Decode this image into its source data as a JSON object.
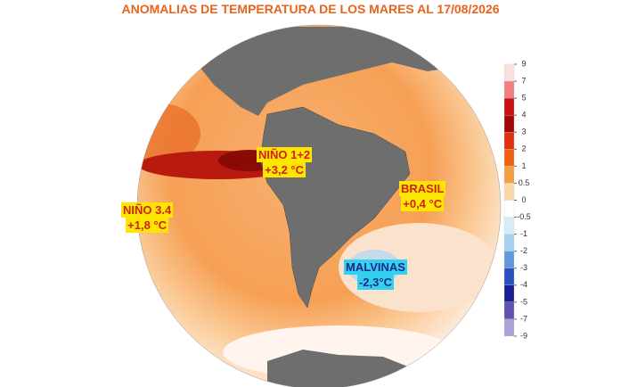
{
  "title": "ANOMALIAS DE TEMPERATURA DE LOS MARES AL 17/08/2026",
  "regions": [
    {
      "name": "NIÑO 1+2",
      "anomaly": "+3,2 °C"
    },
    {
      "name": "NIÑO 3.4",
      "anomaly": "+1,8 °C"
    },
    {
      "name": "BRASIL",
      "anomaly": "+0,4 °C"
    },
    {
      "name": "MALVINAS",
      "anomaly": "-2,3°C"
    }
  ],
  "colorbar": {
    "ticks": [
      9,
      7,
      5,
      4,
      3,
      2,
      1,
      0.5,
      0,
      -0.5,
      -1,
      -2,
      -3,
      -4,
      -5,
      -7,
      -9
    ],
    "colors": [
      "#fbe0e0",
      "#f08080",
      "#c81010",
      "#a00808",
      "#e03010",
      "#f06010",
      "#f4a040",
      "#fcd8a8",
      "#ffffff",
      "#d8ecf8",
      "#a8d0f0",
      "#6098e0",
      "#2850c0",
      "#182090",
      "#6050b0",
      "#b0a0d8"
    ]
  }
}
